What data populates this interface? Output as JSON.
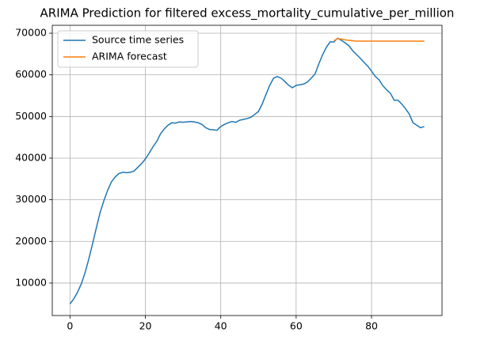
{
  "chart_data": {
    "type": "line",
    "title": "ARIMA Prediction for filtered excess_mortality_cumulative_per_million",
    "series": [
      {
        "name": "Source time series",
        "color": "#1f77b4",
        "x": [
          0,
          1,
          2,
          3,
          4,
          5,
          6,
          7,
          8,
          9,
          10,
          11,
          12,
          13,
          14,
          15,
          16,
          17,
          18,
          19,
          20,
          21,
          22,
          23,
          24,
          25,
          26,
          27,
          28,
          29,
          30,
          31,
          32,
          33,
          34,
          35,
          36,
          37,
          38,
          39,
          40,
          41,
          42,
          43,
          44,
          45,
          46,
          47,
          48,
          49,
          50,
          51,
          52,
          53,
          54,
          55,
          56,
          57,
          58,
          59,
          60,
          61,
          62,
          63,
          64,
          65,
          66,
          67,
          68,
          69,
          70,
          71,
          72,
          73,
          74,
          75,
          76,
          77,
          78,
          79,
          80,
          81,
          82,
          83,
          84,
          85,
          86,
          87,
          88,
          89,
          90,
          91,
          92,
          93,
          94
        ],
        "values": [
          5000,
          6200,
          7800,
          9800,
          12500,
          15800,
          19500,
          23300,
          27000,
          29800,
          32300,
          34300,
          35500,
          36300,
          36600,
          36500,
          36600,
          36900,
          37800,
          38700,
          39800,
          41200,
          42700,
          44000,
          45800,
          47000,
          47900,
          48500,
          48400,
          48700,
          48600,
          48700,
          48800,
          48700,
          48500,
          48100,
          47300,
          46900,
          46800,
          46700,
          47600,
          48100,
          48500,
          48800,
          48600,
          49100,
          49300,
          49500,
          49800,
          50500,
          51200,
          53000,
          55300,
          57500,
          59200,
          59600,
          59200,
          58400,
          57500,
          56900,
          57500,
          57600,
          57800,
          58300,
          59200,
          60200,
          62600,
          64800,
          66600,
          67900,
          67900,
          68800,
          68300,
          67700,
          67000,
          65800,
          64900,
          64000,
          63000,
          62100,
          60900,
          59600,
          58800,
          57400,
          56400,
          55600,
          53900,
          53900,
          53000,
          51900,
          50600,
          48500,
          47900,
          47300,
          47600
        ]
      },
      {
        "name": "ARIMA forecast",
        "color": "#ff7f0e",
        "x": [
          70,
          71,
          72,
          73,
          74,
          75,
          76,
          77,
          78,
          79,
          80,
          81,
          82,
          83,
          84,
          85,
          86,
          87,
          88,
          89,
          90,
          91,
          92,
          93,
          94
        ],
        "values": [
          68200,
          68700,
          68600,
          68400,
          68300,
          68200,
          68100,
          68100,
          68100,
          68100,
          68100,
          68100,
          68100,
          68100,
          68100,
          68100,
          68100,
          68100,
          68100,
          68100,
          68100,
          68100,
          68100,
          68100,
          68100
        ]
      }
    ],
    "xlim": [
      -4.7,
      98.7
    ],
    "xticks": [
      0,
      20,
      40,
      60,
      80
    ],
    "ylim": [
      2200,
      71900
    ],
    "yticks": [
      10000,
      20000,
      30000,
      40000,
      50000,
      60000,
      70000
    ],
    "grid": true,
    "legend": "upper left"
  }
}
